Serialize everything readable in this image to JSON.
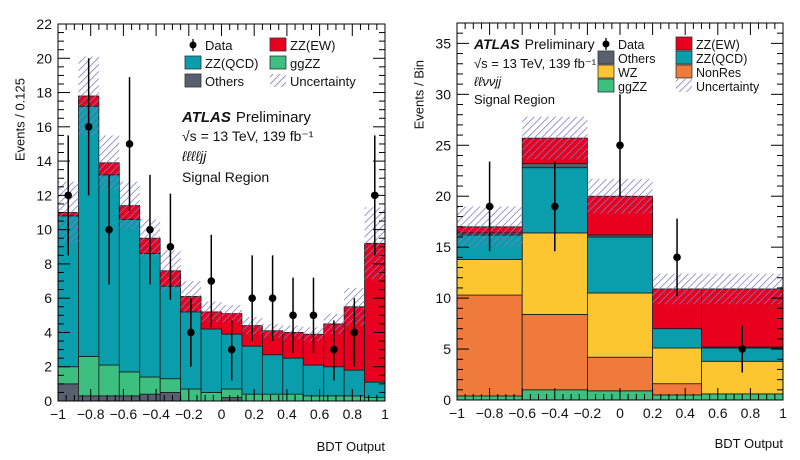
{
  "colors": {
    "ZZ(EW)": "#e8001e",
    "ZZ(QCD)": "#0a9eac",
    "ggZZ": "#3dbf80",
    "Others": "#56606f",
    "WZ": "#fcc631",
    "NonRes": "#f07a3c",
    "Uncertainty": "#7c7ec4",
    "Data": "#000000"
  },
  "chart_data": [
    {
      "type": "bar",
      "stacked": true,
      "style": "histogram",
      "xlabel": "BDT Output",
      "ylabel": "Events / 0.125",
      "xlim": [
        -1,
        1
      ],
      "ylim": [
        0,
        22
      ],
      "xticks": [
        "−1",
        "−0.8",
        "−0.6",
        "−0.4",
        "−0.2",
        "0",
        "0.2",
        "0.4",
        "0.6",
        "0.8",
        "1"
      ],
      "yticks": [
        "0",
        "2",
        "4",
        "6",
        "8",
        "10",
        "12",
        "14",
        "16",
        "18",
        "20",
        "22"
      ],
      "annotations": {
        "experiment": "ATLAS",
        "status": "Preliminary",
        "energy": "√s = 13 TeV, 139 fb⁻¹",
        "channel": "ℓℓℓℓjj",
        "region": "Signal Region"
      },
      "legend": {
        "placement": "top-right",
        "entries": [
          "Data",
          "ZZ(EW)",
          "ZZ(QCD)",
          "ggZZ",
          "Others",
          "Uncertainty"
        ]
      },
      "bin_edges": [
        -1,
        -0.875,
        -0.75,
        -0.625,
        -0.5,
        -0.375,
        -0.25,
        -0.125,
        0,
        0.125,
        0.25,
        0.375,
        0.5,
        0.625,
        0.75,
        0.875,
        1
      ],
      "series": [
        {
          "name": "Others",
          "values": [
            1.0,
            0.3,
            0.3,
            0.3,
            0.4,
            0.5,
            0,
            0,
            0.2,
            0,
            0,
            0,
            0,
            0,
            0,
            0
          ]
        },
        {
          "name": "ggZZ",
          "values": [
            1.0,
            2.3,
            1.8,
            1.4,
            1.0,
            0.8,
            0.7,
            0.5,
            0.5,
            0.4,
            0.4,
            0.4,
            0.3,
            0.3,
            0.3,
            0.2
          ]
        },
        {
          "name": "ZZ(QCD)",
          "values": [
            8.8,
            14.6,
            11.1,
            8.9,
            7.2,
            5.4,
            4.5,
            3.7,
            3.2,
            2.8,
            2.3,
            2.1,
            1.8,
            1.7,
            1.5,
            0.9
          ]
        },
        {
          "name": "ZZ(EW)",
          "values": [
            0.2,
            0.6,
            0.7,
            0.8,
            0.9,
            0.9,
            0.9,
            1.0,
            1.2,
            1.2,
            1.4,
            1.5,
            1.8,
            2.5,
            3.7,
            8.1
          ]
        }
      ],
      "uncertainty": [
        1.8,
        2.3,
        1.6,
        1.4,
        1.1,
        1.2,
        0.9,
        0.6,
        0.5,
        0.5,
        0.4,
        0.4,
        0.4,
        0.6,
        1.1,
        2.1
      ],
      "data": {
        "x": [
          -0.9375,
          -0.8125,
          -0.6875,
          -0.5625,
          -0.4375,
          -0.3125,
          -0.1875,
          -0.0625,
          0.0625,
          0.1875,
          0.3125,
          0.4375,
          0.5625,
          0.6875,
          0.8125,
          0.9375
        ],
        "y": [
          12,
          16,
          10,
          15,
          10,
          9,
          4,
          7,
          3,
          6,
          6,
          5,
          5,
          3,
          4,
          12
        ],
        "err_low": [
          3.5,
          4.0,
          3.2,
          3.9,
          3.2,
          3.1,
          2.0,
          2.7,
          1.8,
          2.5,
          2.5,
          2.2,
          2.2,
          1.8,
          2.0,
          3.5
        ],
        "err_high": [
          3.5,
          4.0,
          3.2,
          3.9,
          3.2,
          3.1,
          2.0,
          2.7,
          1.7,
          2.5,
          2.5,
          2.2,
          2.2,
          1.7,
          2.0,
          3.5
        ]
      }
    },
    {
      "type": "bar",
      "stacked": true,
      "style": "histogram",
      "xlabel": "BDT Output",
      "ylabel": "Events / Bin",
      "xlim": [
        -1,
        1
      ],
      "ylim": [
        0,
        37
      ],
      "xticks": [
        "−1",
        "−0.8",
        "−0.6",
        "−0.4",
        "−0.2",
        "0",
        "0.2",
        "0.4",
        "0.6",
        "0.8",
        "1"
      ],
      "yticks": [
        "0",
        "5",
        "10",
        "15",
        "20",
        "25",
        "30",
        "35"
      ],
      "annotations": {
        "experiment": "ATLAS",
        "status": "Preliminary",
        "energy": "√s = 13 TeV, 139 fb⁻¹",
        "channel": "ℓℓννjj",
        "region": "Signal Region"
      },
      "legend": {
        "placement": "top-right",
        "entries": [
          "Data",
          "ZZ(EW)",
          "Others",
          "ZZ(QCD)",
          "WZ",
          "NonRes",
          "ggZZ",
          "Uncertainty"
        ]
      },
      "bin_edges": [
        -1,
        -0.6,
        -0.2,
        0.2,
        0.5,
        1
      ],
      "series": [
        {
          "name": "ggZZ",
          "values": [
            0.4,
            1.0,
            0.9,
            0.5,
            0.6
          ]
        },
        {
          "name": "NonRes",
          "values": [
            9.9,
            7.4,
            3.3,
            1.1,
            0.0
          ]
        },
        {
          "name": "WZ",
          "values": [
            3.5,
            8.0,
            6.3,
            3.5,
            3.2
          ]
        },
        {
          "name": "ZZ(QCD)",
          "values": [
            2.4,
            6.4,
            5.5,
            1.9,
            1.3
          ]
        },
        {
          "name": "Others",
          "values": [
            0.2,
            0.4,
            0.2,
            0.0,
            0.1
          ]
        },
        {
          "name": "ZZ(EW)",
          "values": [
            0.6,
            2.5,
            3.8,
            3.9,
            5.7
          ]
        }
      ],
      "uncertainty": [
        2.0,
        2.1,
        1.7,
        1.5,
        1.5
      ],
      "data": {
        "x": [
          -0.8,
          -0.4,
          0,
          0.35,
          0.75
        ],
        "y": [
          19,
          19,
          25,
          14,
          5
        ],
        "err_low": [
          4.4,
          4.4,
          5.0,
          3.8,
          2.3
        ],
        "err_high": [
          4.4,
          4.4,
          5.0,
          3.8,
          2.3
        ]
      }
    }
  ]
}
